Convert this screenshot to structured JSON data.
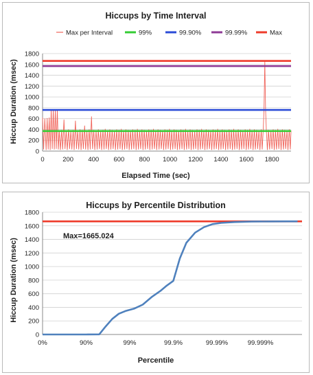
{
  "chart_data": [
    {
      "type": "line",
      "title": "Hiccups by Time Interval",
      "xlabel": "Elapsed Time (sec)",
      "ylabel": "Hiccup Duration (msec)",
      "xlim": [
        0,
        1950
      ],
      "ylim": [
        0,
        1800
      ],
      "x_ticks": [
        "0",
        "200",
        "400",
        "600",
        "800",
        "1000",
        "1200",
        "1400",
        "1600",
        "1800"
      ],
      "y_ticks": [
        "0",
        "200",
        "400",
        "600",
        "800",
        "1000",
        "1200",
        "1400",
        "1600",
        "1800"
      ],
      "grid": true,
      "legend_position": "top",
      "series": [
        {
          "name": "Max per Interval",
          "color": "#f0635a",
          "points": [
            [
              0,
              620
            ],
            [
              8,
              30
            ],
            [
              18,
              600
            ],
            [
              28,
              20
            ],
            [
              36,
              610
            ],
            [
              44,
              30
            ],
            [
              52,
              620
            ],
            [
              60,
              20
            ],
            [
              68,
              760
            ],
            [
              76,
              40
            ],
            [
              84,
              770
            ],
            [
              92,
              30
            ],
            [
              100,
              770
            ],
            [
              108,
              40
            ],
            [
              116,
              760
            ],
            [
              124,
              30
            ],
            [
              132,
              380
            ],
            [
              140,
              20
            ],
            [
              150,
              390
            ],
            [
              158,
              30
            ],
            [
              168,
              580
            ],
            [
              176,
              40
            ],
            [
              186,
              380
            ],
            [
              194,
              20
            ],
            [
              204,
              400
            ],
            [
              212,
              40
            ],
            [
              222,
              370
            ],
            [
              230,
              30
            ],
            [
              240,
              390
            ],
            [
              248,
              20
            ],
            [
              258,
              560
            ],
            [
              266,
              40
            ],
            [
              276,
              380
            ],
            [
              284,
              30
            ],
            [
              294,
              400
            ],
            [
              302,
              20
            ],
            [
              312,
              390
            ],
            [
              320,
              40
            ],
            [
              330,
              470
            ],
            [
              338,
              30
            ],
            [
              348,
              380
            ],
            [
              356,
              20
            ],
            [
              366,
              400
            ],
            [
              374,
              30
            ],
            [
              384,
              640
            ],
            [
              392,
              40
            ],
            [
              402,
              390
            ],
            [
              410,
              20
            ],
            [
              420,
              380
            ],
            [
              428,
              30
            ],
            [
              438,
              400
            ],
            [
              446,
              40
            ],
            [
              456,
              370
            ],
            [
              464,
              20
            ],
            [
              474,
              390
            ],
            [
              482,
              30
            ],
            [
              492,
              410
            ],
            [
              500,
              40
            ],
            [
              510,
              380
            ],
            [
              518,
              20
            ],
            [
              528,
              400
            ],
            [
              536,
              30
            ],
            [
              546,
              390
            ],
            [
              554,
              40
            ],
            [
              564,
              380
            ],
            [
              572,
              20
            ],
            [
              582,
              400
            ],
            [
              590,
              30
            ],
            [
              600,
              390
            ],
            [
              608,
              40
            ],
            [
              618,
              410
            ],
            [
              626,
              20
            ],
            [
              636,
              380
            ],
            [
              644,
              30
            ],
            [
              654,
              400
            ],
            [
              662,
              40
            ],
            [
              672,
              390
            ],
            [
              680,
              20
            ],
            [
              690,
              380
            ],
            [
              698,
              30
            ],
            [
              708,
              400
            ],
            [
              716,
              40
            ],
            [
              726,
              390
            ],
            [
              734,
              20
            ],
            [
              744,
              410
            ],
            [
              752,
              30
            ],
            [
              762,
              380
            ],
            [
              770,
              40
            ],
            [
              780,
              400
            ],
            [
              788,
              20
            ],
            [
              798,
              390
            ],
            [
              806,
              30
            ],
            [
              816,
              380
            ],
            [
              824,
              40
            ],
            [
              834,
              400
            ],
            [
              842,
              20
            ],
            [
              852,
              390
            ],
            [
              860,
              30
            ],
            [
              870,
              410
            ],
            [
              878,
              40
            ],
            [
              888,
              380
            ],
            [
              896,
              20
            ],
            [
              906,
              400
            ],
            [
              914,
              30
            ],
            [
              924,
              390
            ],
            [
              932,
              40
            ],
            [
              942,
              380
            ],
            [
              950,
              20
            ],
            [
              960,
              400
            ],
            [
              968,
              30
            ],
            [
              978,
              390
            ],
            [
              986,
              40
            ],
            [
              996,
              410
            ],
            [
              1004,
              20
            ],
            [
              1014,
              380
            ],
            [
              1022,
              30
            ],
            [
              1032,
              400
            ],
            [
              1040,
              40
            ],
            [
              1050,
              390
            ],
            [
              1058,
              20
            ],
            [
              1068,
              380
            ],
            [
              1076,
              30
            ],
            [
              1086,
              400
            ],
            [
              1094,
              40
            ],
            [
              1104,
              390
            ],
            [
              1112,
              20
            ],
            [
              1122,
              410
            ],
            [
              1130,
              30
            ],
            [
              1140,
              380
            ],
            [
              1148,
              40
            ],
            [
              1158,
              400
            ],
            [
              1166,
              20
            ],
            [
              1176,
              390
            ],
            [
              1184,
              30
            ],
            [
              1194,
              380
            ],
            [
              1202,
              40
            ],
            [
              1212,
              400
            ],
            [
              1220,
              20
            ],
            [
              1230,
              390
            ],
            [
              1238,
              30
            ],
            [
              1248,
              410
            ],
            [
              1256,
              40
            ],
            [
              1266,
              380
            ],
            [
              1274,
              20
            ],
            [
              1284,
              400
            ],
            [
              1292,
              30
            ],
            [
              1302,
              390
            ],
            [
              1310,
              40
            ],
            [
              1320,
              380
            ],
            [
              1328,
              20
            ],
            [
              1338,
              400
            ],
            [
              1346,
              30
            ],
            [
              1356,
              390
            ],
            [
              1364,
              40
            ],
            [
              1374,
              410
            ],
            [
              1382,
              20
            ],
            [
              1392,
              380
            ],
            [
              1400,
              30
            ],
            [
              1410,
              400
            ],
            [
              1418,
              40
            ],
            [
              1428,
              390
            ],
            [
              1436,
              20
            ],
            [
              1446,
              380
            ],
            [
              1454,
              30
            ],
            [
              1464,
              400
            ],
            [
              1472,
              40
            ],
            [
              1482,
              390
            ],
            [
              1490,
              20
            ],
            [
              1500,
              410
            ],
            [
              1508,
              30
            ],
            [
              1518,
              380
            ],
            [
              1526,
              40
            ],
            [
              1536,
              400
            ],
            [
              1544,
              20
            ],
            [
              1554,
              390
            ],
            [
              1562,
              30
            ],
            [
              1572,
              380
            ],
            [
              1580,
              40
            ],
            [
              1590,
              400
            ],
            [
              1598,
              20
            ],
            [
              1608,
              390
            ],
            [
              1616,
              30
            ],
            [
              1626,
              410
            ],
            [
              1634,
              40
            ],
            [
              1644,
              380
            ],
            [
              1652,
              20
            ],
            [
              1662,
              400
            ],
            [
              1670,
              30
            ],
            [
              1680,
              390
            ],
            [
              1688,
              40
            ],
            [
              1698,
              380
            ],
            [
              1706,
              20
            ],
            [
              1716,
              400
            ],
            [
              1724,
              30
            ],
            [
              1732,
              390
            ],
            [
              1738,
              760
            ],
            [
              1744,
              1665
            ],
            [
              1750,
              760
            ],
            [
              1756,
              400
            ],
            [
              1764,
              20
            ],
            [
              1774,
              390
            ],
            [
              1782,
              30
            ],
            [
              1792,
              380
            ],
            [
              1800,
              40
            ],
            [
              1810,
              400
            ],
            [
              1818,
              20
            ],
            [
              1828,
              390
            ],
            [
              1836,
              30
            ],
            [
              1846,
              410
            ],
            [
              1854,
              40
            ],
            [
              1864,
              380
            ],
            [
              1872,
              20
            ],
            [
              1882,
              400
            ],
            [
              1890,
              30
            ],
            [
              1900,
              390
            ],
            [
              1908,
              40
            ],
            [
              1918,
              380
            ],
            [
              1926,
              20
            ],
            [
              1936,
              400
            ],
            [
              1944,
              30
            ],
            [
              1950,
              380
            ]
          ]
        },
        {
          "name": "99%",
          "color": "#33cc33",
          "value": 370
        },
        {
          "name": "99.90%",
          "color": "#2a4bd7",
          "value": 760
        },
        {
          "name": "99.99%",
          "color": "#8e3a96",
          "value": 1570
        },
        {
          "name": "Max",
          "color": "#ee3b2a",
          "value": 1665
        }
      ]
    },
    {
      "type": "line",
      "title": "Hiccups by Percentile Distribution",
      "xlabel": "Percentile",
      "ylabel": "Hiccup Duration (msec)",
      "ylim": [
        0,
        1800
      ],
      "x_ticks": [
        "0%",
        "90%",
        "99%",
        "99.9%",
        "99.99%",
        "99.999%"
      ],
      "y_ticks": [
        "0",
        "200",
        "400",
        "600",
        "800",
        "1000",
        "1200",
        "1400",
        "1600",
        "1800"
      ],
      "grid": true,
      "annotation": "Max=1665.024",
      "max_line": {
        "value": 1665.024,
        "color": "#ee3b2a"
      },
      "series": [
        {
          "name": "",
          "color": "#4f81bd",
          "x_unit": "decades of percentile (0 = 0%, 1 = 90%, 2 = 99%, 3 = 99.9%, 4 = 99.99%, 5 = 99.999%)",
          "points": [
            [
              0,
              0
            ],
            [
              0.5,
              0
            ],
            [
              1,
              0
            ],
            [
              1.3,
              2
            ],
            [
              1.45,
              120
            ],
            [
              1.6,
              230
            ],
            [
              1.75,
              305
            ],
            [
              1.9,
              345
            ],
            [
              2.1,
              380
            ],
            [
              2.3,
              440
            ],
            [
              2.5,
              550
            ],
            [
              2.7,
              640
            ],
            [
              2.85,
              720
            ],
            [
              3.0,
              790
            ],
            [
              3.15,
              1120
            ],
            [
              3.3,
              1350
            ],
            [
              3.5,
              1500
            ],
            [
              3.7,
              1580
            ],
            [
              3.9,
              1625
            ],
            [
              4.1,
              1643
            ],
            [
              4.4,
              1655
            ],
            [
              4.8,
              1662
            ],
            [
              5.2,
              1664
            ],
            [
              5.6,
              1665
            ],
            [
              5.85,
              1665
            ]
          ]
        }
      ]
    }
  ]
}
